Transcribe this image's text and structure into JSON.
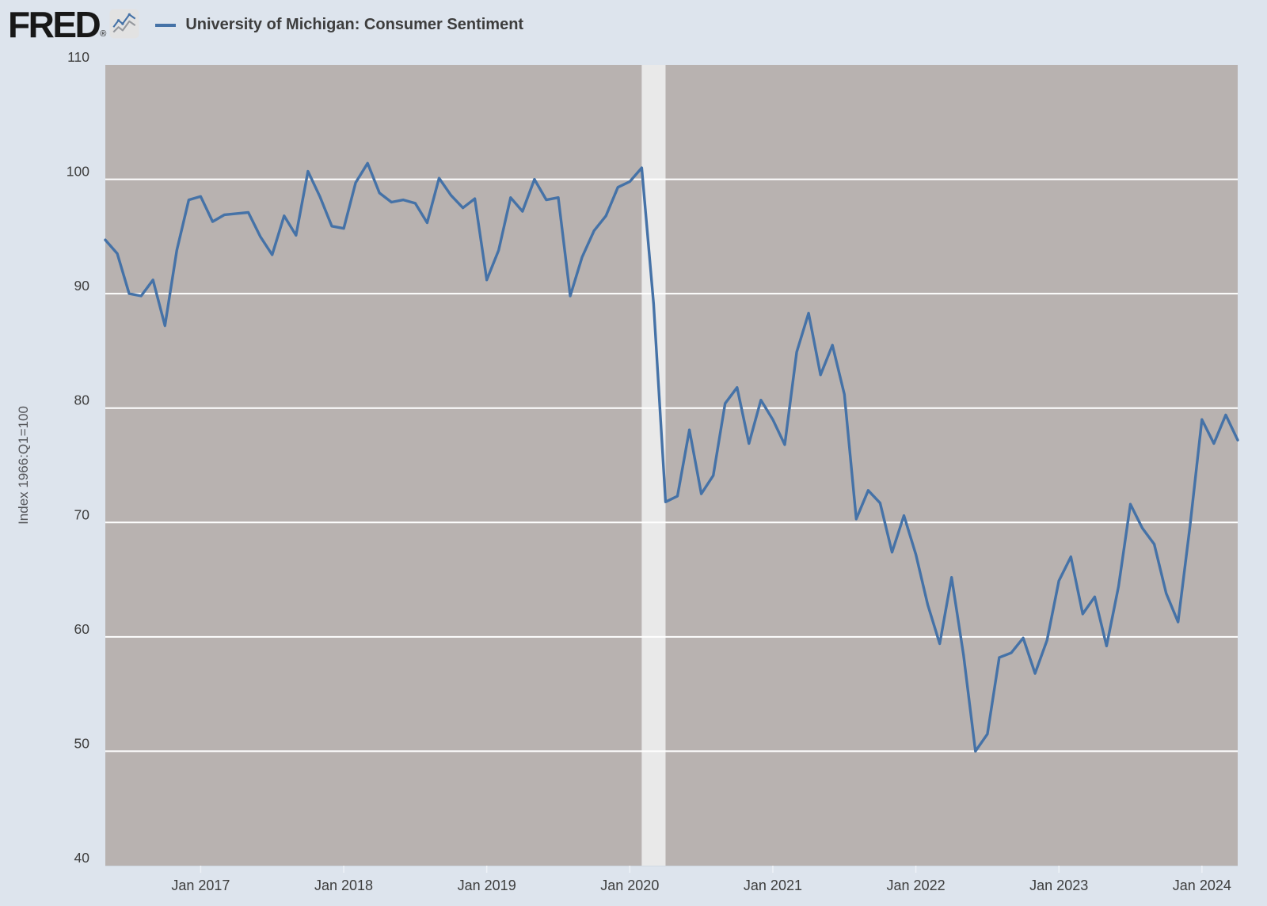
{
  "header": {
    "logo_text": "FRED",
    "logo_registered": "®",
    "sparkline_icon": "line-chart-sparkline"
  },
  "chart_data": {
    "type": "line",
    "title": "University of Michigan: Consumer Sentiment",
    "ylabel": "Index 1966:Q1=100",
    "xlabel": "",
    "ylim": [
      40,
      110
    ],
    "yticks": [
      40,
      50,
      60,
      70,
      80,
      90,
      100,
      110
    ],
    "grid": true,
    "legend_position": "top-left",
    "x_start": "2016-05",
    "x_end": "2024-04",
    "x_ticks": [
      {
        "label": "Jan 2017",
        "month": "2017-01"
      },
      {
        "label": "Jan 2018",
        "month": "2018-01"
      },
      {
        "label": "Jan 2019",
        "month": "2019-01"
      },
      {
        "label": "Jan 2020",
        "month": "2020-01"
      },
      {
        "label": "Jan 2021",
        "month": "2021-01"
      },
      {
        "label": "Jan 2022",
        "month": "2022-01"
      },
      {
        "label": "Jan 2023",
        "month": "2023-01"
      },
      {
        "label": "Jan 2024",
        "month": "2024-01"
      }
    ],
    "recession_band": {
      "from": "2020-02",
      "to": "2020-04"
    },
    "series": [
      {
        "name": "University of Michigan: Consumer Sentiment",
        "color": "#4572a7",
        "frequency": "monthly",
        "values": [
          94.7,
          93.5,
          90.0,
          89.8,
          91.2,
          87.2,
          93.8,
          98.2,
          98.5,
          96.3,
          96.9,
          97.0,
          97.1,
          95.0,
          93.4,
          96.8,
          95.1,
          100.7,
          98.5,
          95.9,
          95.7,
          99.7,
          101.4,
          98.8,
          98.0,
          98.2,
          97.9,
          96.2,
          100.1,
          98.6,
          97.5,
          98.3,
          91.2,
          93.8,
          98.4,
          97.2,
          100.0,
          98.2,
          98.4,
          89.8,
          93.2,
          95.5,
          96.8,
          99.3,
          99.8,
          101.0,
          89.1,
          71.8,
          72.3,
          78.1,
          72.5,
          74.1,
          80.4,
          81.8,
          76.9,
          80.7,
          79.0,
          76.8,
          84.9,
          88.3,
          82.9,
          85.5,
          81.2,
          70.3,
          72.8,
          71.7,
          67.4,
          70.6,
          67.2,
          62.8,
          59.4,
          65.2,
          58.4,
          50.0,
          51.5,
          58.2,
          58.6,
          59.9,
          56.8,
          59.7,
          64.9,
          67.0,
          62.0,
          63.5,
          59.2,
          64.4,
          71.6,
          69.5,
          68.1,
          63.8,
          61.3,
          69.7,
          79.0,
          76.9,
          79.4,
          77.2
        ]
      }
    ],
    "colors": {
      "outer_bg": "#dde4ed",
      "plot_bg": "#b8b2b0",
      "gridline": "#ffffff",
      "recession_band": "#e9e9e9",
      "line": "#4572a7",
      "tick_text": "#3d3d3d",
      "axis_title_text": "#55565a"
    }
  }
}
